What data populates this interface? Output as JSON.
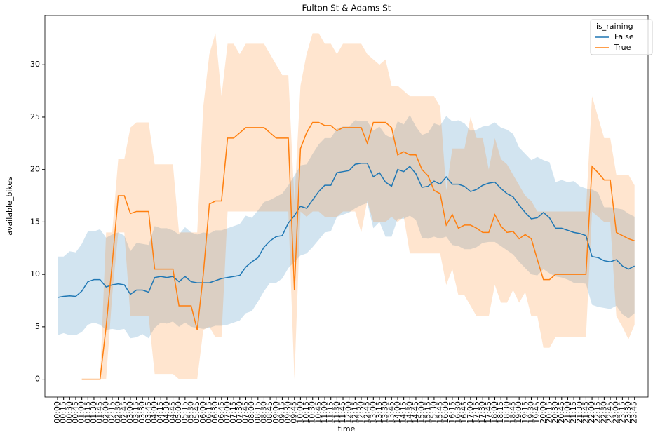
{
  "chart_data": {
    "type": "line",
    "title": "Fulton St & Adams St",
    "x_label": "time",
    "y_label": "available_bikes",
    "legend_title": "is_raining",
    "legend": "upper right",
    "categories": [
      "00:00",
      "00:15",
      "00:30",
      "00:45",
      "01:00",
      "01:15",
      "01:30",
      "01:45",
      "02:00",
      "02:15",
      "02:30",
      "02:45",
      "03:00",
      "03:15",
      "03:30",
      "03:45",
      "04:00",
      "04:15",
      "04:30",
      "04:45",
      "05:00",
      "05:15",
      "05:30",
      "05:45",
      "06:00",
      "06:15",
      "06:30",
      "06:45",
      "07:00",
      "07:15",
      "07:30",
      "07:45",
      "08:00",
      "08:15",
      "08:30",
      "08:45",
      "09:00",
      "09:15",
      "09:30",
      "09:45",
      "10:00",
      "10:15",
      "10:30",
      "10:45",
      "11:00",
      "11:15",
      "11:30",
      "11:45",
      "12:00",
      "12:15",
      "12:30",
      "12:45",
      "13:00",
      "13:15",
      "13:30",
      "13:45",
      "14:00",
      "14:15",
      "14:30",
      "14:45",
      "15:00",
      "15:15",
      "15:30",
      "15:45",
      "16:00",
      "16:15",
      "16:30",
      "16:45",
      "17:00",
      "17:15",
      "17:30",
      "17:45",
      "18:00",
      "18:15",
      "18:30",
      "18:45",
      "19:00",
      "19:15",
      "19:30",
      "19:45",
      "20:00",
      "20:15",
      "20:30",
      "20:45",
      "21:00",
      "21:15",
      "21:30",
      "21:45",
      "22:00",
      "22:15",
      "22:30",
      "22:45",
      "23:00",
      "23:15",
      "23:30",
      "23:45"
    ],
    "ylim": [
      -1.7,
      34.7
    ],
    "yticks": [
      0,
      5,
      10,
      15,
      20,
      25,
      30
    ],
    "series": [
      {
        "name": "False",
        "color": "#1f77b4",
        "values": [
          7.8,
          7.9,
          7.95,
          7.9,
          8.4,
          9.3,
          9.5,
          9.5,
          8.8,
          9.0,
          9.1,
          9.0,
          8.1,
          8.5,
          8.5,
          8.3,
          9.7,
          9.8,
          9.7,
          9.8,
          9.3,
          9.8,
          9.3,
          9.2,
          9.2,
          9.2,
          9.4,
          9.6,
          9.7,
          9.8,
          9.9,
          10.7,
          11.2,
          11.6,
          12.6,
          13.2,
          13.6,
          13.7,
          14.9,
          15.6,
          16.5,
          16.3,
          17.1,
          17.9,
          18.5,
          18.5,
          19.7,
          19.8,
          19.9,
          20.5,
          20.6,
          20.6,
          19.3,
          19.7,
          18.8,
          18.4,
          20.0,
          19.8,
          20.3,
          19.6,
          18.3,
          18.4,
          18.9,
          18.6,
          19.3,
          18.6,
          18.6,
          18.4,
          17.9,
          18.1,
          18.5,
          18.7,
          18.8,
          18.2,
          17.7,
          17.4,
          16.6,
          15.9,
          15.3,
          15.4,
          15.9,
          15.4,
          14.4,
          14.4,
          14.2,
          14.0,
          13.9,
          13.7,
          11.7,
          11.6,
          11.3,
          11.2,
          11.4,
          10.8,
          10.5,
          10.8
        ],
        "upper": [
          11.7,
          11.7,
          12.2,
          12.1,
          12.9,
          14.1,
          14.1,
          14.3,
          13.5,
          13.8,
          14.0,
          13.7,
          12.2,
          13.0,
          12.9,
          12.8,
          14.6,
          14.4,
          14.4,
          14.2,
          13.8,
          14.5,
          14.0,
          13.8,
          14.0,
          13.9,
          14.2,
          14.2,
          14.4,
          14.6,
          14.8,
          15.6,
          15.4,
          16.1,
          16.9,
          17.1,
          17.4,
          17.7,
          18.5,
          19.4,
          20.4,
          20.5,
          21.5,
          22.4,
          23.0,
          23.0,
          23.9,
          24.1,
          24.1,
          24.7,
          24.6,
          24.6,
          23.7,
          24.1,
          23.3,
          23.0,
          24.6,
          24.3,
          25.2,
          24.1,
          23.3,
          23.5,
          24.4,
          24.2,
          25.1,
          24.6,
          24.7,
          24.4,
          23.7,
          23.8,
          24.1,
          24.2,
          24.5,
          24.0,
          23.8,
          23.4,
          22.1,
          21.5,
          20.9,
          21.2,
          20.9,
          20.7,
          18.8,
          19.0,
          18.8,
          18.9,
          18.4,
          18.2,
          18.1,
          17.8,
          16.4,
          16.4,
          16.3,
          16.2,
          15.8,
          15.5
        ],
        "lower": [
          4.2,
          4.4,
          4.2,
          4.2,
          4.5,
          5.2,
          5.4,
          5.2,
          4.7,
          4.8,
          4.7,
          4.8,
          3.9,
          4.0,
          4.3,
          3.9,
          4.9,
          5.4,
          5.3,
          5.5,
          5.0,
          5.4,
          5.0,
          4.9,
          4.8,
          4.9,
          5.1,
          5.1,
          5.2,
          5.4,
          5.6,
          6.3,
          6.5,
          7.4,
          8.4,
          9.2,
          9.2,
          9.6,
          10.6,
          11.2,
          11.8,
          12.0,
          12.6,
          13.3,
          14.0,
          14.1,
          15.5,
          15.7,
          15.9,
          16.3,
          16.6,
          16.8,
          14.4,
          15.0,
          13.6,
          13.6,
          15.3,
          15.3,
          15.6,
          15.2,
          13.5,
          13.4,
          13.6,
          13.4,
          13.6,
          12.8,
          12.7,
          12.4,
          12.4,
          12.6,
          13.0,
          13.1,
          13.1,
          12.7,
          12.3,
          11.9,
          11.2,
          10.6,
          10.0,
          9.9,
          10.5,
          10.1,
          9.8,
          9.7,
          9.5,
          9.2,
          9.2,
          9.1,
          7.1,
          6.9,
          6.8,
          6.7,
          7.0,
          6.2,
          5.8,
          6.3
        ]
      },
      {
        "name": "True",
        "color": "#ff7f0e",
        "values": [
          null,
          null,
          null,
          null,
          0,
          0,
          0,
          0,
          5,
          11,
          17.5,
          17.5,
          15.8,
          16,
          16,
          16,
          10.5,
          10.5,
          10.5,
          10.5,
          7,
          7,
          7,
          4.7,
          10,
          16.7,
          17,
          17,
          23,
          23,
          23.5,
          24,
          24,
          24,
          24,
          23.5,
          23,
          23,
          23,
          8.5,
          22,
          23.5,
          24.5,
          24.5,
          24.2,
          24.2,
          23.7,
          24,
          24,
          24,
          24,
          22.5,
          24.5,
          24.5,
          24.5,
          24.0,
          21.4,
          21.7,
          21.4,
          21.4,
          20.0,
          19.4,
          18.0,
          17.7,
          14.7,
          15.7,
          14.4,
          14.7,
          14.7,
          14.4,
          14.0,
          14.0,
          15.7,
          14.6,
          14.0,
          14.1,
          13.4,
          13.8,
          13.4,
          11.4,
          9.5,
          9.5,
          10,
          10,
          10,
          10,
          10,
          10,
          20.3,
          19.7,
          19.0,
          19.0,
          14.0,
          13.7,
          13.4,
          13.2
        ],
        "upper": [
          null,
          null,
          null,
          null,
          0,
          0,
          0,
          0,
          14,
          14,
          21,
          21,
          24,
          24.5,
          24.5,
          24.5,
          20.5,
          20.5,
          20.5,
          20.5,
          14,
          14,
          14,
          14,
          26,
          31,
          33,
          27,
          32,
          32,
          31,
          32,
          32,
          32,
          32,
          31,
          30,
          29,
          29,
          17,
          28,
          31,
          33,
          33,
          32,
          32,
          31,
          32,
          32,
          32,
          32,
          31,
          30.5,
          30,
          30.5,
          28,
          28,
          27.5,
          27,
          27,
          27,
          27,
          27,
          26,
          18,
          22,
          22,
          22,
          25,
          23,
          23,
          20,
          23,
          21,
          20.5,
          19.5,
          18.5,
          17.5,
          17,
          16,
          16,
          16,
          16,
          16,
          16,
          16,
          16,
          16,
          27,
          25,
          23,
          23,
          19.5,
          19.5,
          19.5,
          18.5
        ],
        "lower": [
          null,
          null,
          null,
          null,
          0,
          0,
          0,
          0,
          0,
          8,
          14,
          14,
          6,
          6,
          6,
          6,
          0.5,
          0.5,
          0.5,
          0.5,
          0,
          0,
          0,
          0,
          4.7,
          5,
          4,
          4,
          16,
          16,
          16,
          16,
          16,
          16,
          16,
          16,
          16,
          16,
          16,
          0,
          16,
          15.5,
          16,
          16,
          15.5,
          15.5,
          15.5,
          16,
          16,
          16,
          14,
          17,
          15,
          15,
          15,
          15.5,
          15,
          15.5,
          12,
          12,
          12,
          12,
          12,
          12,
          9,
          10.5,
          8,
          8,
          7,
          6,
          6,
          6,
          9,
          7.3,
          7.3,
          8.5,
          7.3,
          8.3,
          6,
          6,
          3,
          3,
          4,
          4,
          4,
          4,
          4,
          4,
          16,
          15.5,
          15,
          15,
          6,
          5,
          3.8,
          5.2
        ]
      }
    ]
  }
}
